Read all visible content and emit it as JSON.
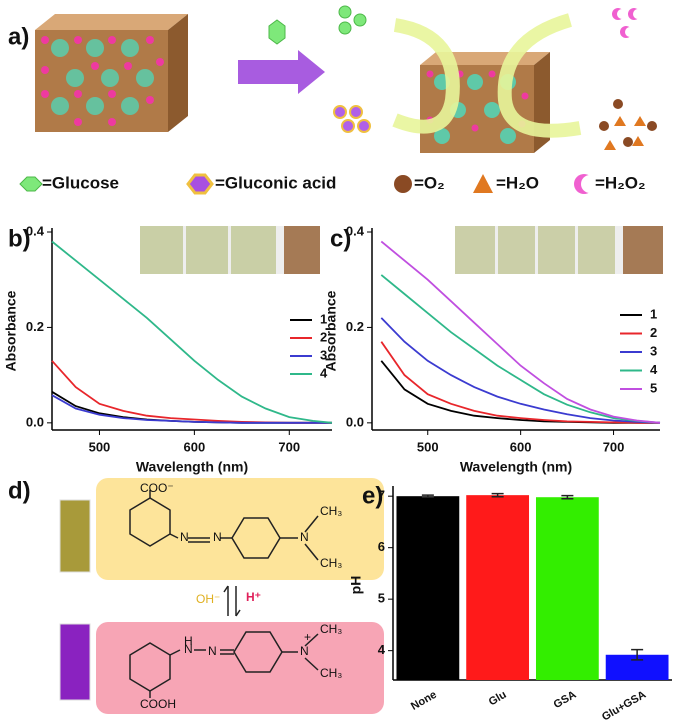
{
  "figure": {
    "panel_labels": [
      "a)",
      "b)",
      "c)",
      "d)",
      "e)"
    ],
    "legend_a": [
      "=Glucose",
      "=Gluconic acid",
      "=O₂",
      "=H₂O",
      "=H₂O₂"
    ]
  },
  "panel_d": {
    "top": [
      "COO⁻",
      "N",
      "N",
      "N",
      "CH₃",
      "CH₃"
    ],
    "bottom": [
      "H",
      "N",
      "N",
      "N",
      "+",
      "CH₃",
      "CH₃",
      "COOH"
    ],
    "arrows": [
      "OH⁻",
      "H⁺"
    ]
  },
  "chart_data": [
    {
      "type": "line",
      "xlabel": "Wavelength (nm)",
      "ylabel": "Absorbance",
      "x": [
        450,
        475,
        500,
        525,
        550,
        575,
        600,
        625,
        650,
        675,
        700,
        725,
        745
      ],
      "xlim": [
        450,
        745
      ],
      "xticks": [
        500,
        600,
        700
      ],
      "ylim": [
        -0.015,
        0.4
      ],
      "yticks": [
        {
          "value": 0,
          "label": "0.0"
        },
        0.2,
        0.4
      ],
      "series": [
        {
          "name": "1",
          "color": "#000000",
          "values": [
            0.065,
            0.035,
            0.02,
            0.012,
            0.007,
            0.004,
            0.002,
            0.001,
            0,
            0,
            0,
            0,
            0
          ]
        },
        {
          "name": "2",
          "color": "#e8262b",
          "values": [
            0.13,
            0.075,
            0.04,
            0.025,
            0.015,
            0.01,
            0.007,
            0.004,
            0.002,
            0.001,
            0,
            0,
            0
          ]
        },
        {
          "name": "3",
          "color": "#3b3bd0",
          "values": [
            0.058,
            0.03,
            0.017,
            0.01,
            0.006,
            0.004,
            0.002,
            0.001,
            0,
            0,
            0,
            0,
            0
          ]
        },
        {
          "name": "4",
          "color": "#2fb88a",
          "values": [
            0.38,
            0.34,
            0.3,
            0.26,
            0.22,
            0.175,
            0.13,
            0.09,
            0.055,
            0.03,
            0.012,
            0.004,
            0
          ]
        }
      ]
    },
    {
      "type": "line",
      "xlabel": "Wavelength (nm)",
      "ylabel": "Absorbance",
      "x": [
        450,
        475,
        500,
        525,
        550,
        575,
        600,
        625,
        650,
        675,
        700,
        725,
        750
      ],
      "xlim": [
        440,
        750
      ],
      "xticks": [
        500,
        600,
        700
      ],
      "ylim": [
        -0.015,
        0.4
      ],
      "yticks": [
        {
          "value": 0,
          "label": "0.0"
        },
        0.2,
        0.4
      ],
      "series": [
        {
          "name": "1",
          "color": "#000000",
          "values": [
            0.13,
            0.07,
            0.04,
            0.025,
            0.015,
            0.01,
            0.006,
            0.003,
            0.002,
            0.001,
            0,
            0,
            0
          ]
        },
        {
          "name": "2",
          "color": "#e8262b",
          "values": [
            0.17,
            0.1,
            0.06,
            0.04,
            0.025,
            0.015,
            0.01,
            0.006,
            0.003,
            0.002,
            0.001,
            0,
            0
          ]
        },
        {
          "name": "3",
          "color": "#3b3bd0",
          "values": [
            0.22,
            0.17,
            0.13,
            0.1,
            0.075,
            0.055,
            0.04,
            0.028,
            0.018,
            0.01,
            0.005,
            0.002,
            0
          ]
        },
        {
          "name": "4",
          "color": "#2fb88a",
          "values": [
            0.31,
            0.27,
            0.23,
            0.19,
            0.155,
            0.12,
            0.09,
            0.06,
            0.038,
            0.022,
            0.01,
            0.004,
            0
          ]
        },
        {
          "name": "5",
          "color": "#c04fe0",
          "values": [
            0.38,
            0.34,
            0.3,
            0.255,
            0.21,
            0.165,
            0.12,
            0.083,
            0.05,
            0.028,
            0.013,
            0.005,
            0
          ]
        }
      ]
    },
    {
      "type": "bar",
      "ylabel": "pH",
      "categories": [
        "None",
        "Glu",
        "GSA",
        "Glu+GSA"
      ],
      "values": [
        7.0,
        7.02,
        6.98,
        3.92
      ],
      "errors": [
        0.02,
        0.03,
        0.03,
        0.1
      ],
      "colors": [
        "#000000",
        "#ff1a1a",
        "#33ee00",
        "#1010ff"
      ],
      "ylim": [
        3.43,
        7.12
      ],
      "yticks": [
        4,
        5,
        6,
        7
      ]
    }
  ]
}
